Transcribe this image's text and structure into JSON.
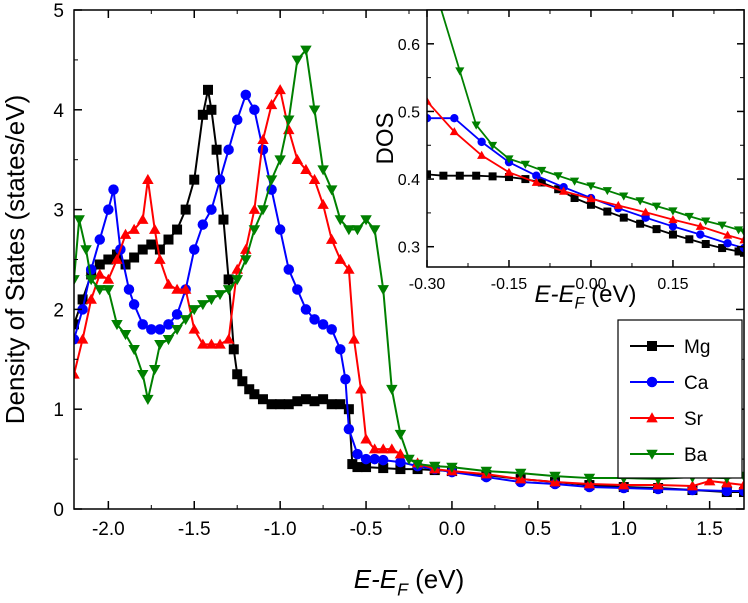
{
  "chart_data": [
    {
      "type": "line",
      "xlabel_main": "E",
      "xlabel_minus": "-E",
      "xlabel_sub": "F",
      "xlabel_unit": " (eV)",
      "ylabel": "Density of States (states/eV)",
      "xlim": [
        -2.2,
        1.7
      ],
      "ylim": [
        0,
        5
      ],
      "xticks": [
        "-2.0",
        "-1.5",
        "-1.0",
        "-0.5",
        "0.0",
        "0.5",
        "1.0",
        "1.5"
      ],
      "xtick_values": [
        -2.0,
        -1.5,
        -1.0,
        -0.5,
        0.0,
        0.5,
        1.0,
        1.5
      ],
      "yticks": [
        "0",
        "1",
        "2",
        "3",
        "4",
        "5"
      ],
      "ytick_values": [
        0,
        1,
        2,
        3,
        4,
        5
      ],
      "legend_position": "lower-right",
      "series": [
        {
          "name": "Mg",
          "color": "#000000",
          "marker": "square",
          "x": [
            -2.2,
            -2.15,
            -2.1,
            -2.05,
            -2.0,
            -1.95,
            -1.9,
            -1.85,
            -1.8,
            -1.75,
            -1.7,
            -1.65,
            -1.6,
            -1.55,
            -1.5,
            -1.45,
            -1.42,
            -1.4,
            -1.37,
            -1.33,
            -1.3,
            -1.27,
            -1.25,
            -1.22,
            -1.18,
            -1.15,
            -1.1,
            -1.05,
            -1.0,
            -0.95,
            -0.9,
            -0.85,
            -0.8,
            -0.75,
            -0.7,
            -0.65,
            -0.6,
            -0.58,
            -0.55,
            -0.5,
            -0.4,
            -0.3,
            -0.2,
            -0.1,
            0.0,
            0.2,
            0.4,
            0.6,
            0.8,
            1.0,
            1.2,
            1.4,
            1.6,
            1.7
          ],
          "y": [
            1.85,
            2.1,
            2.35,
            2.45,
            2.5,
            2.55,
            2.45,
            2.52,
            2.6,
            2.65,
            2.6,
            2.7,
            2.8,
            3.0,
            3.3,
            3.95,
            4.2,
            4.0,
            3.6,
            2.9,
            2.3,
            1.6,
            1.35,
            1.28,
            1.2,
            1.15,
            1.1,
            1.05,
            1.05,
            1.05,
            1.08,
            1.1,
            1.08,
            1.1,
            1.05,
            1.05,
            1.0,
            0.45,
            0.42,
            0.42,
            0.41,
            0.4,
            0.4,
            0.39,
            0.38,
            0.34,
            0.3,
            0.27,
            0.24,
            0.22,
            0.21,
            0.19,
            0.17,
            0.17
          ]
        },
        {
          "name": "Ca",
          "color": "#0000ff",
          "marker": "circle",
          "x": [
            -2.2,
            -2.15,
            -2.1,
            -2.05,
            -2.0,
            -1.97,
            -1.93,
            -1.88,
            -1.85,
            -1.8,
            -1.75,
            -1.7,
            -1.65,
            -1.6,
            -1.55,
            -1.5,
            -1.45,
            -1.4,
            -1.35,
            -1.3,
            -1.25,
            -1.2,
            -1.15,
            -1.1,
            -1.05,
            -1.0,
            -0.95,
            -0.9,
            -0.85,
            -0.8,
            -0.75,
            -0.7,
            -0.65,
            -0.62,
            -0.6,
            -0.55,
            -0.5,
            -0.45,
            -0.4,
            -0.3,
            -0.2,
            -0.1,
            0.0,
            0.2,
            0.4,
            0.6,
            0.8,
            1.0,
            1.2,
            1.4,
            1.6,
            1.7
          ],
          "y": [
            1.7,
            2.0,
            2.4,
            2.7,
            3.0,
            3.2,
            2.6,
            2.2,
            2.05,
            1.85,
            1.8,
            1.8,
            1.85,
            1.95,
            2.2,
            2.6,
            2.85,
            3.0,
            3.3,
            3.6,
            3.9,
            4.15,
            4.0,
            3.6,
            3.2,
            2.8,
            2.4,
            2.2,
            2.0,
            1.9,
            1.85,
            1.8,
            1.6,
            1.3,
            0.8,
            0.55,
            0.5,
            0.5,
            0.49,
            0.47,
            0.43,
            0.4,
            0.37,
            0.32,
            0.27,
            0.25,
            0.22,
            0.21,
            0.2,
            0.19,
            0.18,
            0.18
          ]
        },
        {
          "name": "Sr",
          "color": "#ff0000",
          "marker": "triangle-up",
          "x": [
            -2.2,
            -2.15,
            -2.1,
            -2.05,
            -2.0,
            -1.95,
            -1.9,
            -1.85,
            -1.8,
            -1.77,
            -1.73,
            -1.7,
            -1.65,
            -1.6,
            -1.55,
            -1.5,
            -1.45,
            -1.4,
            -1.35,
            -1.3,
            -1.25,
            -1.2,
            -1.15,
            -1.1,
            -1.05,
            -1.0,
            -0.95,
            -0.9,
            -0.85,
            -0.8,
            -0.75,
            -0.7,
            -0.65,
            -0.6,
            -0.57,
            -0.53,
            -0.5,
            -0.45,
            -0.4,
            -0.35,
            -0.3,
            -0.2,
            -0.1,
            0.0,
            0.2,
            0.4,
            0.6,
            0.8,
            1.0,
            1.2,
            1.4,
            1.5,
            1.6,
            1.7
          ],
          "y": [
            1.35,
            1.7,
            2.1,
            2.35,
            2.3,
            2.5,
            2.75,
            2.8,
            2.9,
            3.3,
            2.8,
            2.5,
            2.25,
            2.2,
            2.2,
            1.8,
            1.65,
            1.65,
            1.65,
            1.7,
            2.4,
            2.6,
            3.0,
            3.7,
            4.05,
            4.2,
            3.8,
            3.5,
            3.4,
            3.3,
            3.05,
            2.7,
            2.5,
            2.4,
            1.7,
            1.2,
            0.7,
            0.6,
            0.6,
            0.6,
            0.55,
            0.46,
            0.4,
            0.38,
            0.35,
            0.3,
            0.27,
            0.25,
            0.24,
            0.24,
            0.23,
            0.28,
            0.26,
            0.24
          ]
        },
        {
          "name": "Ba",
          "color": "#008000",
          "marker": "triangle-down",
          "x": [
            -2.2,
            -2.17,
            -2.13,
            -2.1,
            -2.05,
            -2.0,
            -1.95,
            -1.9,
            -1.85,
            -1.8,
            -1.77,
            -1.73,
            -1.7,
            -1.65,
            -1.6,
            -1.55,
            -1.5,
            -1.45,
            -1.4,
            -1.35,
            -1.3,
            -1.25,
            -1.2,
            -1.15,
            -1.1,
            -1.05,
            -1.0,
            -0.95,
            -0.9,
            -0.85,
            -0.8,
            -0.75,
            -0.7,
            -0.65,
            -0.6,
            -0.55,
            -0.5,
            -0.45,
            -0.4,
            -0.35,
            -0.3,
            -0.25,
            -0.2,
            -0.1,
            0.0,
            0.2,
            0.4,
            0.6,
            0.8,
            1.0,
            1.2,
            1.4,
            1.6,
            1.7
          ],
          "y": [
            2.3,
            2.9,
            2.6,
            2.3,
            2.2,
            2.2,
            1.85,
            1.75,
            1.6,
            1.35,
            1.1,
            1.4,
            1.65,
            1.7,
            1.8,
            1.9,
            2.0,
            2.05,
            2.1,
            2.15,
            2.2,
            2.3,
            2.5,
            2.8,
            3.0,
            3.3,
            3.5,
            3.9,
            4.5,
            4.6,
            4.0,
            3.4,
            3.2,
            2.9,
            2.8,
            2.8,
            2.9,
            2.8,
            2.2,
            1.2,
            0.75,
            0.5,
            0.45,
            0.43,
            0.42,
            0.38,
            0.36,
            0.33,
            0.31,
            0.31,
            0.3,
            0.32,
            0.31,
            0.33
          ]
        }
      ]
    },
    {
      "type": "line",
      "ylabel": "DOS",
      "xlabel_main": "E",
      "xlabel_minus": "-E",
      "xlabel_sub": "F",
      "xlabel_unit": " (eV)",
      "xlim": [
        -0.3,
        0.28
      ],
      "ylim": [
        0.27,
        0.65
      ],
      "xticks": [
        "-0.30",
        "-0.15",
        "0.00",
        "0.15"
      ],
      "xtick_values": [
        -0.3,
        -0.15,
        0.0,
        0.15
      ],
      "yticks": [
        "0.3",
        "0.4",
        "0.5",
        "0.6"
      ],
      "ytick_values": [
        0.3,
        0.4,
        0.5,
        0.6
      ],
      "series": [
        {
          "name": "Mg",
          "color": "#000000",
          "marker": "square",
          "x": [
            -0.3,
            -0.27,
            -0.24,
            -0.21,
            -0.18,
            -0.15,
            -0.12,
            -0.09,
            -0.06,
            -0.03,
            0.0,
            0.03,
            0.06,
            0.09,
            0.12,
            0.15,
            0.18,
            0.21,
            0.24,
            0.27,
            0.28
          ],
          "y": [
            0.407,
            0.405,
            0.405,
            0.405,
            0.404,
            0.403,
            0.4,
            0.395,
            0.385,
            0.372,
            0.362,
            0.352,
            0.343,
            0.334,
            0.326,
            0.318,
            0.311,
            0.304,
            0.298,
            0.293,
            0.291
          ]
        },
        {
          "name": "Ca",
          "color": "#0000ff",
          "marker": "circle",
          "x": [
            -0.3,
            -0.25,
            -0.2,
            -0.15,
            -0.1,
            -0.05,
            0.0,
            0.05,
            0.1,
            0.15,
            0.2,
            0.25,
            0.28
          ],
          "y": [
            0.49,
            0.49,
            0.455,
            0.425,
            0.405,
            0.388,
            0.372,
            0.357,
            0.343,
            0.33,
            0.318,
            0.305,
            0.298
          ]
        },
        {
          "name": "Sr",
          "color": "#ff0000",
          "marker": "triangle-up",
          "x": [
            -0.3,
            -0.25,
            -0.2,
            -0.15,
            -0.1,
            -0.05,
            0.0,
            0.05,
            0.1,
            0.15,
            0.2,
            0.25,
            0.28
          ],
          "y": [
            0.515,
            0.47,
            0.435,
            0.41,
            0.395,
            0.382,
            0.371,
            0.361,
            0.351,
            0.34,
            0.33,
            0.317,
            0.31
          ]
        },
        {
          "name": "Ba",
          "color": "#008000",
          "marker": "triangle-down",
          "x": [
            -0.3,
            -0.24,
            -0.21,
            -0.18,
            -0.15,
            -0.12,
            -0.09,
            -0.06,
            -0.03,
            0.0,
            0.03,
            0.06,
            0.09,
            0.12,
            0.15,
            0.18,
            0.21,
            0.24,
            0.27,
            0.28
          ],
          "y": [
            0.72,
            0.56,
            0.48,
            0.45,
            0.43,
            0.422,
            0.413,
            0.405,
            0.397,
            0.39,
            0.383,
            0.375,
            0.368,
            0.36,
            0.353,
            0.345,
            0.338,
            0.332,
            0.325,
            0.322
          ]
        }
      ]
    }
  ]
}
